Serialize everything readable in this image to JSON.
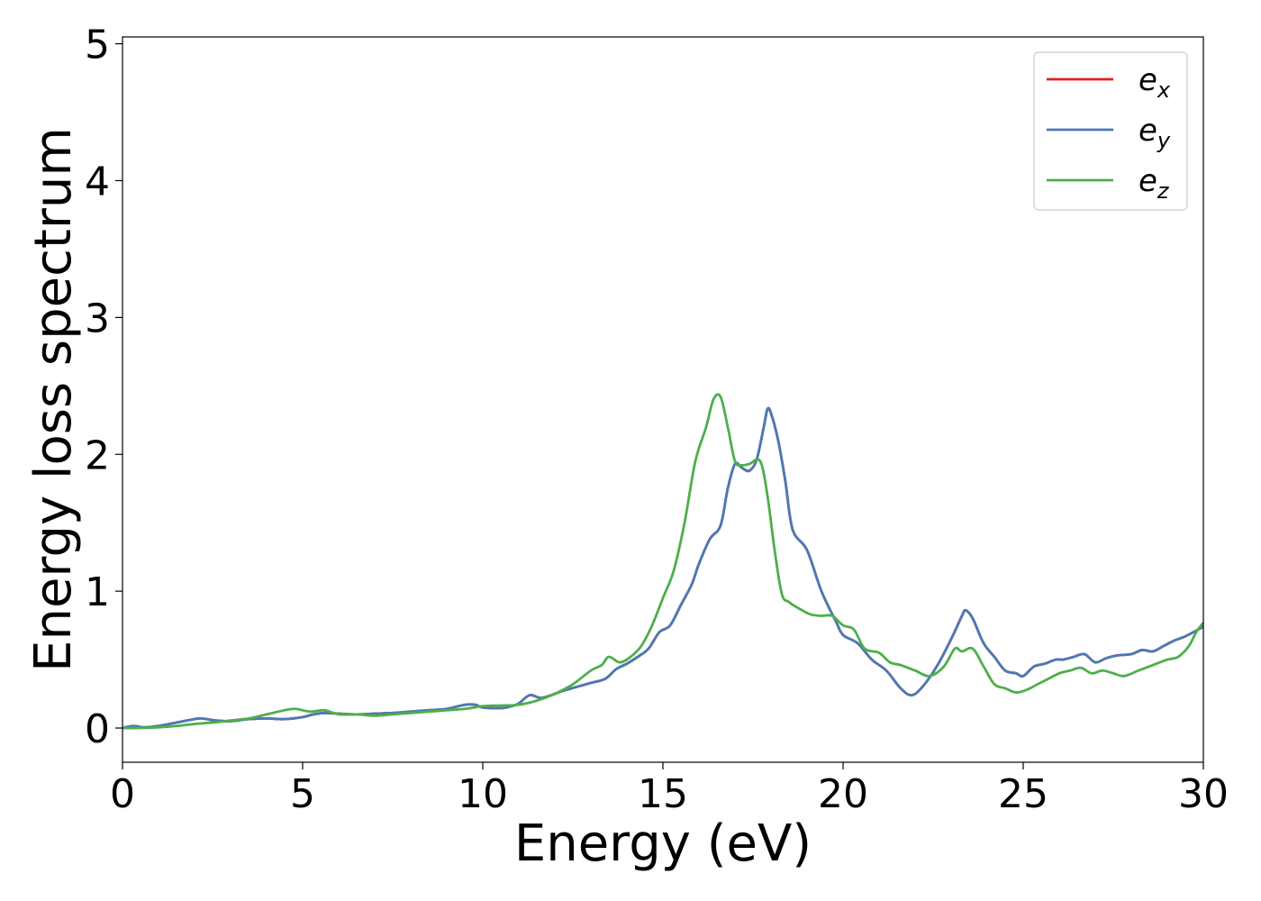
{
  "chart_data": {
    "type": "line",
    "title": "",
    "xlabel": "Energy (eV)",
    "ylabel": "Energy loss spectrum",
    "xlim": [
      0,
      30
    ],
    "ylim": [
      -0.25,
      5.05
    ],
    "xticks": [
      0,
      5,
      10,
      15,
      20,
      25,
      30
    ],
    "yticks": [
      0,
      1,
      2,
      3,
      4,
      5
    ],
    "grid": false,
    "legend_position": "top-right",
    "series": [
      {
        "name": "e_x",
        "label_base": "e",
        "label_sub": "x",
        "color": "#e41a1c",
        "x": [
          0,
          0.3,
          0.6,
          1,
          1.5,
          2,
          2.2,
          2.6,
          3,
          3.5,
          4,
          4.5,
          5,
          5.3,
          5.6,
          6,
          6.5,
          7,
          7.5,
          8,
          8.5,
          9,
          9.5,
          9.8,
          10,
          10.5,
          10.8,
          11,
          11.3,
          11.6,
          11.9,
          12.2,
          12.6,
          13,
          13.4,
          13.7,
          14,
          14.3,
          14.6,
          14.9,
          15.2,
          15.5,
          15.8,
          16,
          16.3,
          16.6,
          16.8,
          17,
          17.2,
          17.4,
          17.6,
          17.8,
          17.9,
          18,
          18.2,
          18.4,
          18.6,
          19,
          19.4,
          19.8,
          20,
          20.4,
          20.8,
          21.2,
          21.6,
          21.9,
          22.2,
          22.6,
          23,
          23.3,
          23.4,
          23.6,
          23.9,
          24.2,
          24.5,
          24.8,
          25,
          25.3,
          25.6,
          25.9,
          26.1,
          26.4,
          26.7,
          27,
          27.3,
          27.6,
          28,
          28.3,
          28.6,
          28.9,
          29.2,
          29.5,
          30
        ],
        "y": [
          0,
          0.015,
          0.005,
          0.015,
          0.04,
          0.065,
          0.07,
          0.055,
          0.05,
          0.065,
          0.07,
          0.065,
          0.08,
          0.1,
          0.11,
          0.105,
          0.1,
          0.105,
          0.11,
          0.12,
          0.13,
          0.14,
          0.17,
          0.17,
          0.15,
          0.145,
          0.16,
          0.18,
          0.24,
          0.22,
          0.24,
          0.27,
          0.3,
          0.33,
          0.36,
          0.43,
          0.47,
          0.52,
          0.58,
          0.7,
          0.75,
          0.9,
          1.05,
          1.2,
          1.38,
          1.48,
          1.75,
          1.93,
          1.9,
          1.88,
          1.96,
          2.2,
          2.33,
          2.3,
          2.1,
          1.8,
          1.45,
          1.3,
          1.0,
          0.78,
          0.68,
          0.62,
          0.5,
          0.42,
          0.29,
          0.24,
          0.3,
          0.45,
          0.65,
          0.82,
          0.86,
          0.8,
          0.62,
          0.52,
          0.42,
          0.4,
          0.38,
          0.45,
          0.47,
          0.5,
          0.5,
          0.52,
          0.54,
          0.48,
          0.51,
          0.53,
          0.54,
          0.57,
          0.56,
          0.6,
          0.64,
          0.67,
          0.74
        ]
      },
      {
        "name": "e_y",
        "label_base": "e",
        "label_sub": "y",
        "color": "#4a7ab6",
        "x": [
          0,
          0.3,
          0.6,
          1,
          1.5,
          2,
          2.2,
          2.6,
          3,
          3.5,
          4,
          4.5,
          5,
          5.3,
          5.6,
          6,
          6.5,
          7,
          7.5,
          8,
          8.5,
          9,
          9.5,
          9.8,
          10,
          10.5,
          10.8,
          11,
          11.3,
          11.6,
          11.9,
          12.2,
          12.6,
          13,
          13.4,
          13.7,
          14,
          14.3,
          14.6,
          14.9,
          15.2,
          15.5,
          15.8,
          16,
          16.3,
          16.6,
          16.8,
          17,
          17.2,
          17.4,
          17.6,
          17.8,
          17.9,
          18,
          18.2,
          18.4,
          18.6,
          19,
          19.4,
          19.8,
          20,
          20.4,
          20.8,
          21.2,
          21.6,
          21.9,
          22.2,
          22.6,
          23,
          23.3,
          23.4,
          23.6,
          23.9,
          24.2,
          24.5,
          24.8,
          25,
          25.3,
          25.6,
          25.9,
          26.1,
          26.4,
          26.7,
          27,
          27.3,
          27.6,
          28,
          28.3,
          28.6,
          28.9,
          29.2,
          29.5,
          30
        ],
        "y": [
          0,
          0.015,
          0.005,
          0.015,
          0.04,
          0.065,
          0.07,
          0.055,
          0.05,
          0.065,
          0.07,
          0.065,
          0.08,
          0.1,
          0.11,
          0.105,
          0.1,
          0.105,
          0.11,
          0.12,
          0.13,
          0.14,
          0.17,
          0.17,
          0.15,
          0.145,
          0.16,
          0.18,
          0.24,
          0.22,
          0.24,
          0.27,
          0.3,
          0.33,
          0.36,
          0.43,
          0.47,
          0.52,
          0.58,
          0.7,
          0.75,
          0.9,
          1.05,
          1.2,
          1.38,
          1.48,
          1.75,
          1.93,
          1.9,
          1.88,
          1.96,
          2.2,
          2.33,
          2.3,
          2.1,
          1.8,
          1.45,
          1.3,
          1.0,
          0.78,
          0.68,
          0.62,
          0.5,
          0.42,
          0.29,
          0.24,
          0.3,
          0.45,
          0.65,
          0.82,
          0.86,
          0.8,
          0.62,
          0.52,
          0.42,
          0.4,
          0.38,
          0.45,
          0.47,
          0.5,
          0.5,
          0.52,
          0.54,
          0.48,
          0.51,
          0.53,
          0.54,
          0.57,
          0.56,
          0.6,
          0.64,
          0.67,
          0.74
        ]
      },
      {
        "name": "e_z",
        "label_base": "e",
        "label_sub": "z",
        "color": "#4daf4a",
        "x": [
          0,
          0.5,
          1,
          1.5,
          2,
          2.5,
          3,
          3.5,
          4,
          4.5,
          4.8,
          5.2,
          5.6,
          6,
          6.5,
          7,
          7.5,
          8,
          8.5,
          9,
          9.5,
          10,
          10.5,
          11,
          11.5,
          12,
          12.5,
          13,
          13.3,
          13.5,
          13.8,
          14.1,
          14.4,
          14.7,
          15,
          15.3,
          15.6,
          15.9,
          16.2,
          16.4,
          16.6,
          16.8,
          17,
          17.2,
          17.4,
          17.7,
          17.9,
          18.1,
          18.3,
          18.5,
          18.8,
          19.1,
          19.4,
          19.7,
          20,
          20.3,
          20.6,
          21,
          21.3,
          21.6,
          22,
          22.4,
          22.8,
          23.1,
          23.3,
          23.6,
          23.9,
          24.2,
          24.5,
          24.8,
          25.1,
          25.4,
          25.7,
          26,
          26.3,
          26.6,
          26.9,
          27.2,
          27.5,
          27.8,
          28.2,
          28.6,
          29,
          29.3,
          29.6,
          29.8,
          30
        ],
        "y": [
          0,
          0.0,
          0.005,
          0.015,
          0.03,
          0.04,
          0.055,
          0.07,
          0.1,
          0.13,
          0.14,
          0.12,
          0.13,
          0.1,
          0.1,
          0.09,
          0.1,
          0.11,
          0.12,
          0.13,
          0.14,
          0.16,
          0.165,
          0.17,
          0.2,
          0.25,
          0.32,
          0.42,
          0.46,
          0.52,
          0.48,
          0.52,
          0.6,
          0.75,
          0.95,
          1.15,
          1.5,
          1.95,
          2.2,
          2.4,
          2.42,
          2.2,
          1.95,
          1.92,
          1.93,
          1.95,
          1.7,
          1.3,
          0.98,
          0.92,
          0.87,
          0.83,
          0.82,
          0.82,
          0.75,
          0.72,
          0.58,
          0.55,
          0.48,
          0.46,
          0.42,
          0.38,
          0.45,
          0.58,
          0.56,
          0.58,
          0.45,
          0.32,
          0.29,
          0.26,
          0.28,
          0.32,
          0.36,
          0.4,
          0.42,
          0.44,
          0.4,
          0.42,
          0.4,
          0.38,
          0.42,
          0.46,
          0.5,
          0.52,
          0.6,
          0.7,
          0.77
        ]
      }
    ]
  }
}
